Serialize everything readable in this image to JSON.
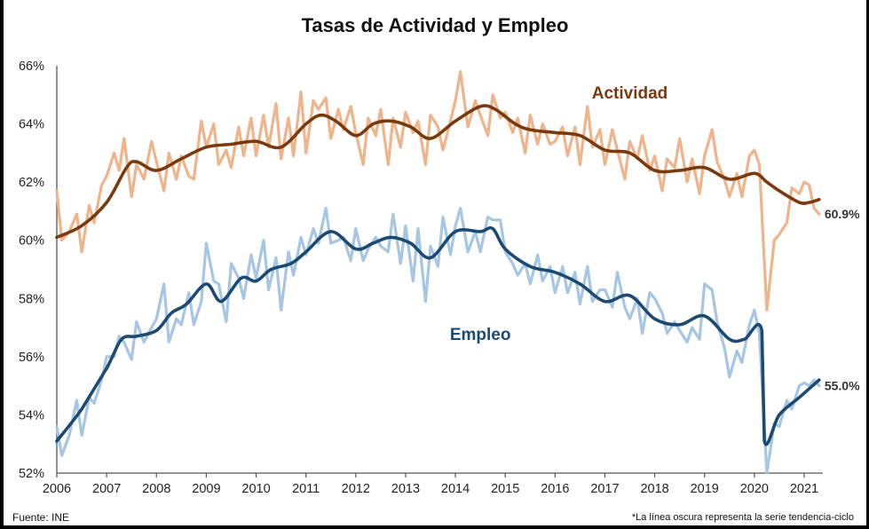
{
  "chart_data": {
    "type": "line",
    "title": "Tasas de Actividad y Empleo",
    "xlabel": "",
    "ylabel": "",
    "x_ticks": [
      "2006",
      "2007",
      "2008",
      "2009",
      "2010",
      "2011",
      "2012",
      "2013",
      "2014",
      "2015",
      "2016",
      "2017",
      "2018",
      "2019",
      "2020",
      "2021"
    ],
    "y_ticks": [
      "52%",
      "54%",
      "56%",
      "58%",
      "60%",
      "62%",
      "64%",
      "66%"
    ],
    "xlim": [
      2006,
      2021.3
    ],
    "ylim": [
      52,
      66
    ],
    "grid": false,
    "series": [
      {
        "name": "Actividad (serie original)",
        "style": "raw",
        "color": "#f0b48c",
        "x": [
          2006.0,
          2006.1,
          2006.25,
          2006.4,
          2006.5,
          2006.65,
          2006.75,
          2006.9,
          2007.0,
          2007.15,
          2007.25,
          2007.35,
          2007.5,
          2007.6,
          2007.75,
          2007.9,
          2008.0,
          2008.15,
          2008.25,
          2008.4,
          2008.5,
          2008.65,
          2008.75,
          2008.9,
          2009.0,
          2009.15,
          2009.25,
          2009.4,
          2009.5,
          2009.65,
          2009.75,
          2009.9,
          2010.0,
          2010.15,
          2010.25,
          2010.4,
          2010.5,
          2010.65,
          2010.75,
          2010.9,
          2011.0,
          2011.15,
          2011.25,
          2011.4,
          2011.5,
          2011.65,
          2011.75,
          2011.9,
          2012.0,
          2012.15,
          2012.25,
          2012.4,
          2012.5,
          2012.65,
          2012.75,
          2012.9,
          2013.0,
          2013.15,
          2013.25,
          2013.4,
          2013.5,
          2013.65,
          2013.75,
          2013.9,
          2014.0,
          2014.1,
          2014.25,
          2014.4,
          2014.5,
          2014.65,
          2014.75,
          2014.9,
          2015.0,
          2015.15,
          2015.25,
          2015.4,
          2015.5,
          2015.65,
          2015.75,
          2015.9,
          2016.0,
          2016.15,
          2016.25,
          2016.4,
          2016.5,
          2016.65,
          2016.75,
          2016.9,
          2017.0,
          2017.15,
          2017.25,
          2017.4,
          2017.5,
          2017.65,
          2017.75,
          2017.9,
          2018.0,
          2018.15,
          2018.25,
          2018.4,
          2018.5,
          2018.65,
          2018.75,
          2018.9,
          2019.0,
          2019.15,
          2019.25,
          2019.4,
          2019.5,
          2019.65,
          2019.75,
          2019.9,
          2020.0,
          2020.1,
          2020.25,
          2020.4,
          2020.5,
          2020.65,
          2020.75,
          2020.9,
          2021.0,
          2021.1,
          2021.2,
          2021.3
        ],
        "values": [
          61.7,
          60.0,
          60.3,
          60.9,
          59.6,
          61.2,
          60.6,
          61.9,
          62.2,
          63.0,
          62.4,
          63.5,
          61.5,
          62.6,
          62.1,
          63.4,
          62.7,
          61.7,
          63.0,
          62.1,
          62.9,
          62.2,
          62.1,
          64.1,
          63.2,
          64.0,
          62.6,
          63.1,
          62.5,
          63.9,
          62.9,
          64.2,
          62.9,
          64.3,
          63.2,
          64.7,
          62.8,
          64.2,
          62.9,
          65.1,
          63.0,
          64.8,
          64.5,
          64.9,
          63.5,
          64.5,
          63.8,
          64.6,
          63.7,
          62.6,
          64.2,
          63.6,
          64.5,
          62.6,
          64.2,
          63.2,
          64.4,
          63.7,
          64.1,
          62.6,
          64.3,
          63.9,
          63.1,
          64.1,
          64.8,
          65.8,
          63.9,
          64.8,
          64.3,
          63.6,
          65.0,
          64.2,
          64.4,
          63.7,
          64.2,
          63.0,
          64.3,
          63.3,
          64.0,
          63.3,
          63.4,
          63.9,
          62.9,
          63.9,
          62.6,
          64.6,
          63.2,
          63.8,
          62.6,
          63.8,
          63.1,
          62.1,
          63.4,
          62.8,
          63.6,
          62.4,
          62.9,
          61.7,
          62.8,
          62.5,
          63.5,
          62.0,
          62.8,
          61.6,
          62.9,
          63.8,
          62.7,
          62.1,
          61.5,
          62.3,
          61.5,
          62.9,
          63.1,
          62.6,
          57.6,
          60.0,
          60.2,
          60.6,
          61.8,
          61.6,
          62.0,
          61.9,
          61.1,
          60.9
        ]
      },
      {
        "name": "Actividad",
        "style": "trend",
        "color": "#7a3a0e",
        "x": [
          2006.0,
          2006.5,
          2007.0,
          2007.4,
          2007.6,
          2008.0,
          2008.5,
          2009.0,
          2009.5,
          2010.0,
          2010.5,
          2011.0,
          2011.3,
          2011.6,
          2012.0,
          2012.35,
          2012.7,
          2013.1,
          2013.5,
          2014.0,
          2014.5,
          2014.8,
          2015.2,
          2015.5,
          2016.0,
          2016.5,
          2017.0,
          2017.5,
          2018.0,
          2018.5,
          2019.0,
          2019.5,
          2020.0,
          2020.25,
          2020.5,
          2020.9,
          2021.1,
          2021.3
        ],
        "values": [
          60.1,
          60.5,
          61.3,
          62.5,
          62.7,
          62.4,
          62.8,
          63.2,
          63.3,
          63.4,
          63.2,
          64.0,
          64.3,
          64.1,
          63.6,
          64.0,
          64.1,
          63.9,
          63.5,
          64.1,
          64.6,
          64.5,
          64.0,
          63.8,
          63.7,
          63.6,
          63.1,
          63.0,
          62.4,
          62.4,
          62.5,
          62.1,
          62.3,
          62.0,
          61.7,
          61.3,
          61.3,
          61.4
        ]
      },
      {
        "name": "Empleo (serie original)",
        "style": "raw",
        "color": "#a6c6e4",
        "x": [
          2006.0,
          2006.1,
          2006.25,
          2006.4,
          2006.5,
          2006.65,
          2006.75,
          2006.9,
          2007.0,
          2007.15,
          2007.25,
          2007.35,
          2007.5,
          2007.6,
          2007.75,
          2007.9,
          2008.0,
          2008.15,
          2008.25,
          2008.4,
          2008.5,
          2008.65,
          2008.75,
          2008.9,
          2009.0,
          2009.15,
          2009.25,
          2009.4,
          2009.5,
          2009.65,
          2009.75,
          2009.9,
          2010.0,
          2010.15,
          2010.25,
          2010.4,
          2010.5,
          2010.65,
          2010.75,
          2010.9,
          2011.0,
          2011.15,
          2011.25,
          2011.4,
          2011.5,
          2011.65,
          2011.75,
          2011.9,
          2012.0,
          2012.15,
          2012.25,
          2012.4,
          2012.5,
          2012.65,
          2012.75,
          2012.9,
          2013.0,
          2013.15,
          2013.25,
          2013.4,
          2013.5,
          2013.65,
          2013.75,
          2013.9,
          2014.0,
          2014.1,
          2014.25,
          2014.4,
          2014.5,
          2014.65,
          2014.75,
          2014.9,
          2015.0,
          2015.15,
          2015.25,
          2015.4,
          2015.5,
          2015.65,
          2015.75,
          2015.9,
          2016.0,
          2016.15,
          2016.25,
          2016.4,
          2016.5,
          2016.65,
          2016.75,
          2016.9,
          2017.0,
          2017.15,
          2017.25,
          2017.4,
          2017.5,
          2017.65,
          2017.75,
          2017.9,
          2018.0,
          2018.15,
          2018.25,
          2018.4,
          2018.5,
          2018.65,
          2018.75,
          2018.9,
          2019.0,
          2019.15,
          2019.25,
          2019.4,
          2019.5,
          2019.65,
          2019.75,
          2019.9,
          2020.0,
          2020.1,
          2020.25,
          2020.4,
          2020.5,
          2020.65,
          2020.75,
          2020.9,
          2021.0,
          2021.1,
          2021.2,
          2021.3
        ],
        "values": [
          53.6,
          52.6,
          53.3,
          54.5,
          53.3,
          54.6,
          54.4,
          55.2,
          56.0,
          56.0,
          56.7,
          56.5,
          55.9,
          57.2,
          56.5,
          57.0,
          57.3,
          58.5,
          56.5,
          57.3,
          57.1,
          58.2,
          57.1,
          57.9,
          59.9,
          58.6,
          58.5,
          57.2,
          59.2,
          58.7,
          58.0,
          59.5,
          58.7,
          60.0,
          58.3,
          59.4,
          57.6,
          59.6,
          58.8,
          60.1,
          59.5,
          60.4,
          59.9,
          61.1,
          59.9,
          60.0,
          60.1,
          59.3,
          60.4,
          59.3,
          59.7,
          60.1,
          59.8,
          59.6,
          60.9,
          59.2,
          60.5,
          58.6,
          60.4,
          57.9,
          59.8,
          59.1,
          60.8,
          59.5,
          60.5,
          61.1,
          59.6,
          60.3,
          59.6,
          60.8,
          60.7,
          60.7,
          59.6,
          59.2,
          58.8,
          59.2,
          58.5,
          59.5,
          58.6,
          59.1,
          58.2,
          59.1,
          58.2,
          58.9,
          57.8,
          59.1,
          57.9,
          58.3,
          58.3,
          57.7,
          58.9,
          57.7,
          57.3,
          58.0,
          56.8,
          58.2,
          58.0,
          57.5,
          56.8,
          57.2,
          56.9,
          56.5,
          57.0,
          56.6,
          58.5,
          58.3,
          57.2,
          56.3,
          55.3,
          56.2,
          55.8,
          57.1,
          57.6,
          56.8,
          52.0,
          53.7,
          53.6,
          54.5,
          54.2,
          55.0,
          55.1,
          55.0,
          55.2,
          55.0
        ]
      },
      {
        "name": "Empleo",
        "style": "trend",
        "color": "#1c4a72",
        "x": [
          2006.0,
          2006.5,
          2007.0,
          2007.3,
          2007.6,
          2008.0,
          2008.3,
          2008.6,
          2009.0,
          2009.3,
          2009.7,
          2010.0,
          2010.3,
          2010.7,
          2011.0,
          2011.5,
          2012.0,
          2012.35,
          2012.7,
          2013.1,
          2013.5,
          2014.0,
          2014.5,
          2014.75,
          2015.0,
          2015.5,
          2016.0,
          2016.5,
          2017.0,
          2017.5,
          2018.0,
          2018.5,
          2019.0,
          2019.5,
          2019.8,
          2020.15,
          2020.2,
          2020.5,
          2020.9,
          2021.3
        ],
        "values": [
          53.1,
          54.2,
          55.6,
          56.6,
          56.7,
          56.9,
          57.5,
          57.8,
          58.5,
          57.9,
          58.7,
          58.6,
          59.0,
          59.2,
          59.6,
          60.3,
          59.7,
          59.9,
          60.1,
          59.9,
          59.4,
          60.3,
          60.3,
          60.4,
          59.7,
          59.1,
          58.9,
          58.5,
          57.9,
          58.1,
          57.3,
          57.1,
          57.4,
          56.6,
          56.6,
          56.9,
          53.1,
          54.0,
          54.6,
          55.2
        ]
      }
    ],
    "annotations": [
      {
        "text": "Actividad",
        "series": "Actividad",
        "color": "#7a3a0e"
      },
      {
        "text": "Empleo",
        "series": "Empleo",
        "color": "#1c4a72"
      },
      {
        "text": "60.9%",
        "series": "Actividad (serie original)",
        "position": "end"
      },
      {
        "text": "55.0%",
        "series": "Empleo (serie original)",
        "position": "end"
      }
    ]
  },
  "footer": {
    "source": "Fuente: INE",
    "note": "*La línea oscura representa la serie tendencia-ciclo"
  }
}
